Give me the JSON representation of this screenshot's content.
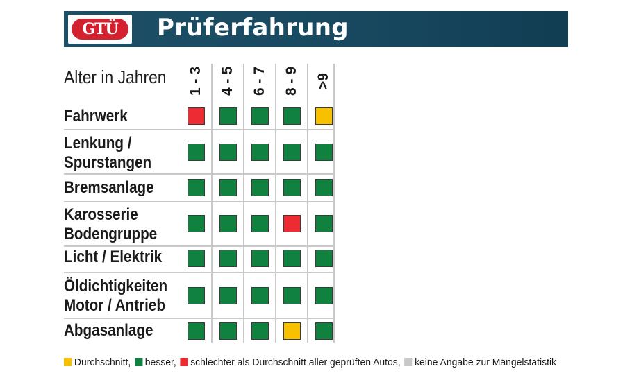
{
  "header": {
    "logo_text": "GTÜ",
    "title": "Prüferfahrung"
  },
  "colors": {
    "banner": "#17485f",
    "logo_red": "#d3212f",
    "green": "#118140",
    "yellow": "#f8c100",
    "red": "#ec2b32",
    "grey": "#c8c8c8"
  },
  "chart_data": {
    "type": "table",
    "column_header_label": "Alter in Jahren",
    "columns": [
      "1 - 3",
      "4 - 5",
      "6 - 7",
      "8 - 9",
      ">9"
    ],
    "rows": [
      {
        "label_lines": [
          "Fahrwerk"
        ],
        "ratings": [
          "red",
          "green",
          "green",
          "green",
          "yellow"
        ]
      },
      {
        "label_lines": [
          "Lenkung /",
          "Spurstangen"
        ],
        "ratings": [
          "green",
          "green",
          "green",
          "green",
          "green"
        ]
      },
      {
        "label_lines": [
          "Bremsanlage"
        ],
        "ratings": [
          "green",
          "green",
          "green",
          "green",
          "green"
        ]
      },
      {
        "label_lines": [
          "Karosserie",
          "Bodengruppe"
        ],
        "ratings": [
          "green",
          "green",
          "green",
          "red",
          "green"
        ]
      },
      {
        "label_lines": [
          "Licht / Elektrik"
        ],
        "ratings": [
          "green",
          "green",
          "green",
          "green",
          "green"
        ]
      },
      {
        "label_lines": [
          "Öldichtigkeiten",
          "Motor / Antrieb"
        ],
        "ratings": [
          "green",
          "green",
          "green",
          "green",
          "green"
        ]
      },
      {
        "label_lines": [
          "Abgasanlage"
        ],
        "ratings": [
          "green",
          "green",
          "green",
          "yellow",
          "green"
        ]
      }
    ],
    "legend": [
      {
        "color": "yellow",
        "label": "Durchschnitt,"
      },
      {
        "color": "green",
        "label": "besser,"
      },
      {
        "color": "red",
        "label": "schlechter als Durchschnitt aller geprüften Autos,"
      },
      {
        "color": "grey",
        "label": "keine Angabe zur Mängelstatistik"
      }
    ]
  }
}
